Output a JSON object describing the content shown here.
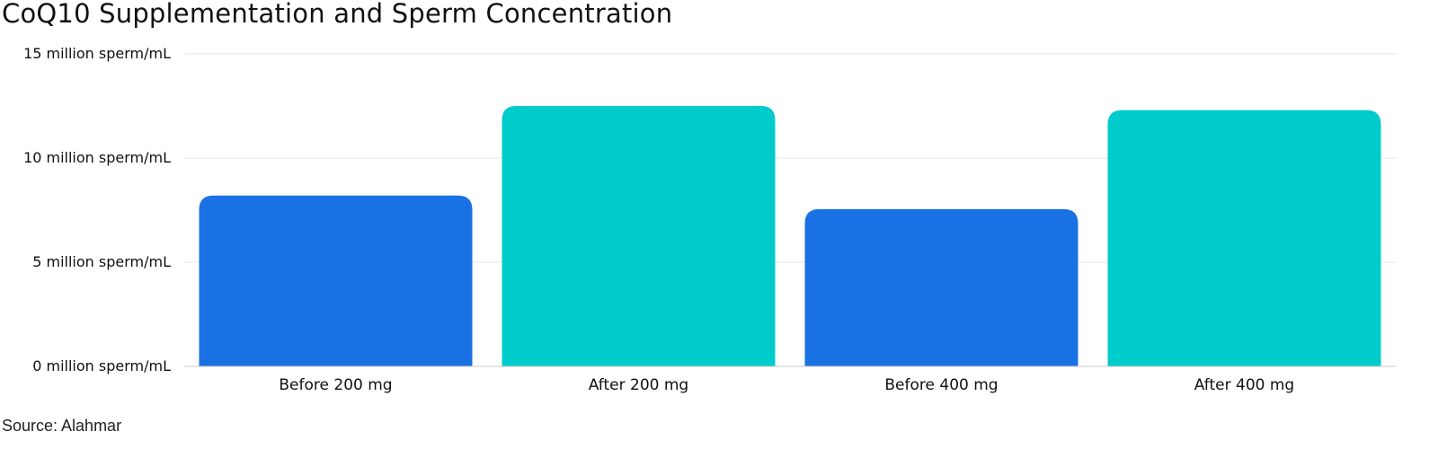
{
  "chart_data": {
    "type": "bar",
    "title": "CoQ10 Supplementation and Sperm Concentration",
    "categories": [
      "Before 200 mg",
      "After 200 mg",
      "Before 400 mg",
      "After 400 mg"
    ],
    "values": [
      8.2,
      12.5,
      7.55,
      12.3
    ],
    "colors": [
      "#1a71e3",
      "#00cccc",
      "#1a71e3",
      "#00cccc"
    ],
    "ylim": [
      0,
      15
    ],
    "yticks": [
      0,
      5,
      10,
      15
    ],
    "ytick_labels": [
      "0 million sperm/mL",
      "5 million sperm/mL",
      "10 million sperm/mL",
      "15 million sperm/mL"
    ],
    "grid": true,
    "source": "Source: Alahmar"
  }
}
